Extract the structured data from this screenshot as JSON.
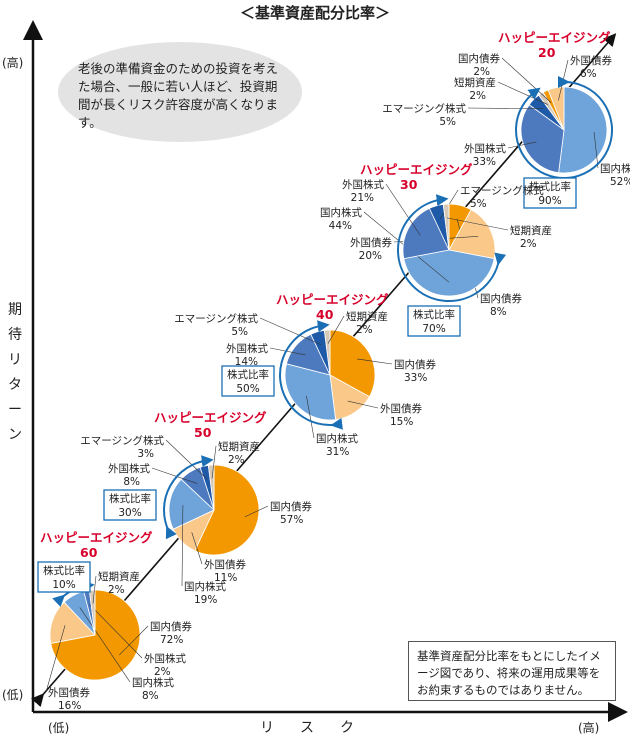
{
  "title": "＜基準資産配分比率＞",
  "y_axis": {
    "label": "期待リターン",
    "high": "(高)",
    "low": "(低)"
  },
  "x_axis": {
    "label": "リスク",
    "low": "(低)",
    "high": "(高)"
  },
  "note": "老後の準備資金のための投資を考えた場合、一般に若い人ほど、投資期間が長くリスク許容度が高くなります。",
  "disclaimer": "基準資産配分比率をもとにしたイメージ図であり、将来の運用成果等をお約束するものではありません。",
  "colors": {
    "国内債券": "#f39800",
    "外国債券": "#fac98a",
    "国内株式": "#6fa4db",
    "外国株式": "#4d79bf",
    "エマージング株式": "#1f5aa8",
    "短期資産": "#d6c9b8",
    "title_red": "#d7002b",
    "frame_blue": "#1a6fb5"
  },
  "chart_data": [
    {
      "type": "pie",
      "title": "ハッピーエイジング 20",
      "equity_ratio_label": "株式比率",
      "equity_ratio": "90%",
      "slices": [
        {
          "name": "国内株式",
          "value": 52
        },
        {
          "name": "外国株式",
          "value": 33
        },
        {
          "name": "エマージング株式",
          "value": 5
        },
        {
          "name": "短期資産",
          "value": 2
        },
        {
          "name": "国内債券",
          "value": 2
        },
        {
          "name": "外国債券",
          "value": 6
        }
      ]
    },
    {
      "type": "pie",
      "title": "ハッピーエイジング 30",
      "equity_ratio_label": "株式比率",
      "equity_ratio": "70%",
      "slices": [
        {
          "name": "国内債券",
          "value": 8
        },
        {
          "name": "外国債券",
          "value": 20
        },
        {
          "name": "国内株式",
          "value": 44
        },
        {
          "name": "外国株式",
          "value": 21
        },
        {
          "name": "エマージング株式",
          "value": 5
        },
        {
          "name": "短期資産",
          "value": 2
        }
      ]
    },
    {
      "type": "pie",
      "title": "ハッピーエイジング 40",
      "equity_ratio_label": "株式比率",
      "equity_ratio": "50%",
      "slices": [
        {
          "name": "国内債券",
          "value": 33
        },
        {
          "name": "外国債券",
          "value": 15
        },
        {
          "name": "国内株式",
          "value": 31
        },
        {
          "name": "外国株式",
          "value": 14
        },
        {
          "name": "エマージング株式",
          "value": 5
        },
        {
          "name": "短期資産",
          "value": 2
        }
      ]
    },
    {
      "type": "pie",
      "title": "ハッピーエイジング 50",
      "equity_ratio_label": "株式比率",
      "equity_ratio": "30%",
      "slices": [
        {
          "name": "国内債券",
          "value": 57
        },
        {
          "name": "外国債券",
          "value": 11
        },
        {
          "name": "国内株式",
          "value": 19
        },
        {
          "name": "外国株式",
          "value": 8
        },
        {
          "name": "エマージング株式",
          "value": 3
        },
        {
          "name": "短期資産",
          "value": 2
        }
      ]
    },
    {
      "type": "pie",
      "title": "ハッピーエイジング 60",
      "equity_ratio_label": "株式比率",
      "equity_ratio": "10%",
      "slices": [
        {
          "name": "国内債券",
          "value": 72
        },
        {
          "name": "外国債券",
          "value": 16
        },
        {
          "name": "国内株式",
          "value": 8
        },
        {
          "name": "外国株式",
          "value": 2
        },
        {
          "name": "短期資産",
          "value": 2
        }
      ]
    }
  ]
}
